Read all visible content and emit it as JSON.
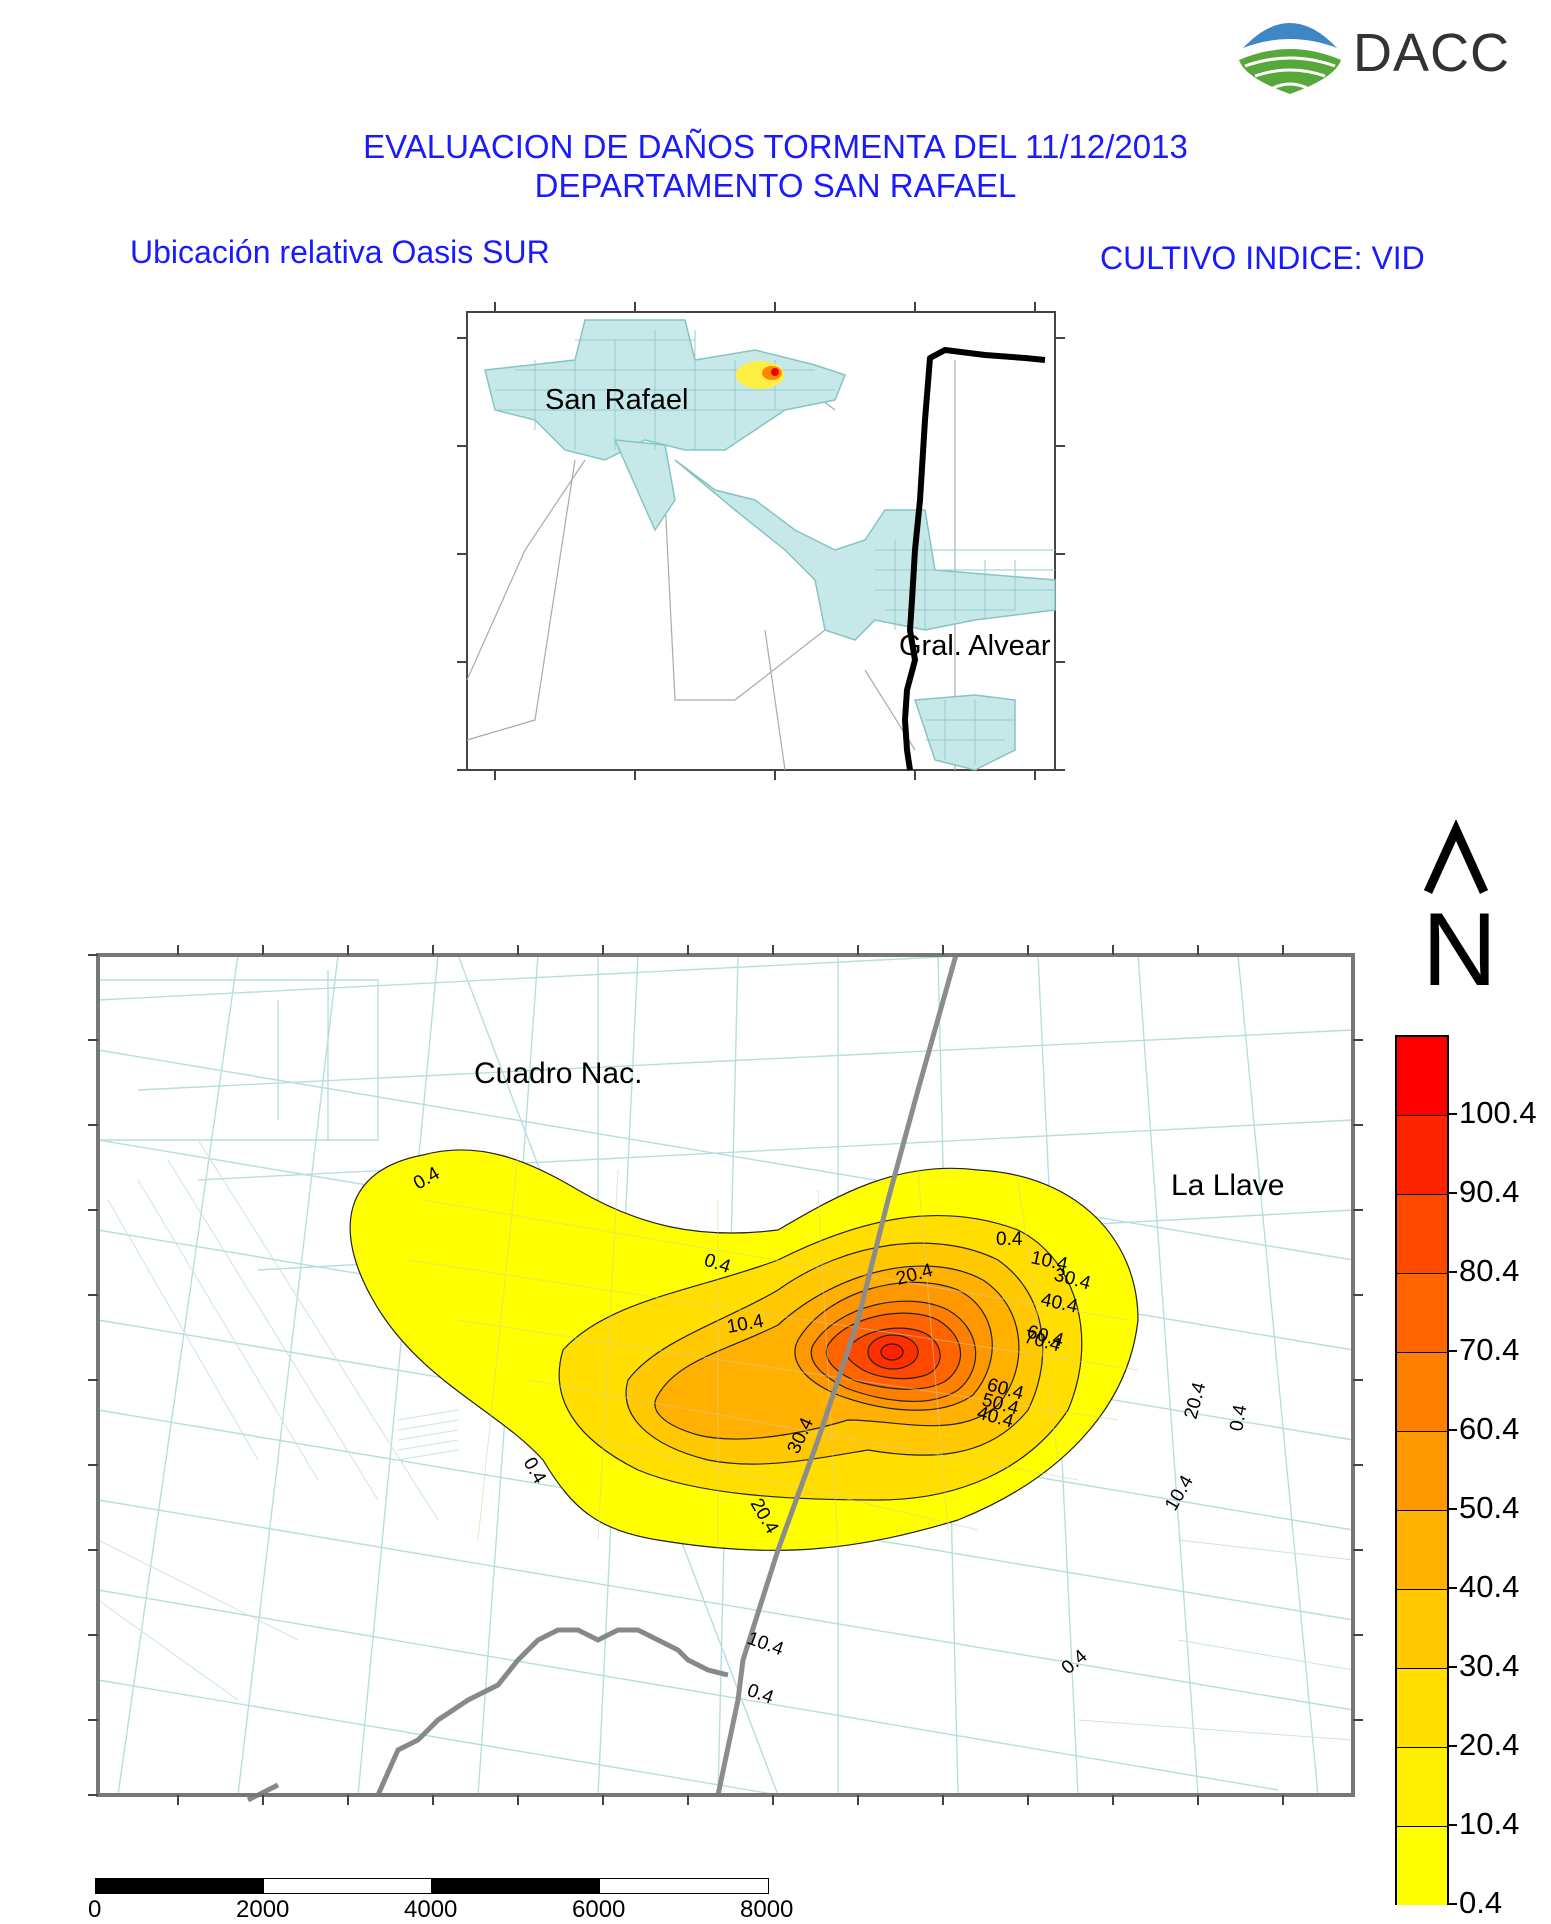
{
  "logo": {
    "text": "DACC"
  },
  "title": {
    "line1": "EVALUACION DE DAÑOS TORMENTA DEL 11/12/2013",
    "line2": "DEPARTAMENTO SAN RAFAEL"
  },
  "subtitle_left": "Ubicación relativa Oasis SUR",
  "subtitle_right": "CULTIVO INDICE: VID",
  "inset_map": {
    "places": [
      "San Rafael",
      "Gral. Alvear"
    ]
  },
  "north_arrow": {
    "arrow": "^",
    "letter": "N"
  },
  "main_map": {
    "places": [
      "Cuadro Nac.",
      "La Llave"
    ],
    "contour_labels": [
      "0.4",
      "0.4",
      "0.4",
      "0.4",
      "0.4",
      "0.4",
      "10.4",
      "10.4",
      "10.4",
      "10.4",
      "20.4",
      "20.4",
      "20.4",
      "30.4",
      "30.4",
      "40.4",
      "40.4",
      "60.4",
      "60.4",
      "70.4",
      "50.4",
      "0.4"
    ]
  },
  "legend": {
    "levels": [
      "100.4",
      "90.4",
      "80.4",
      "70.4",
      "60.4",
      "50.4",
      "40.4",
      "30.4",
      "20.4",
      "10.4",
      "0.4"
    ],
    "colors": [
      "#ff0000",
      "#ff2400",
      "#ff4800",
      "#ff6400",
      "#ff7f00",
      "#ff9800",
      "#ffb000",
      "#ffc800",
      "#ffde00",
      "#fff000",
      "#ffff00"
    ]
  },
  "scale_bar": {
    "ticks": [
      "0",
      "2000",
      "4000",
      "6000",
      "8000"
    ]
  }
}
